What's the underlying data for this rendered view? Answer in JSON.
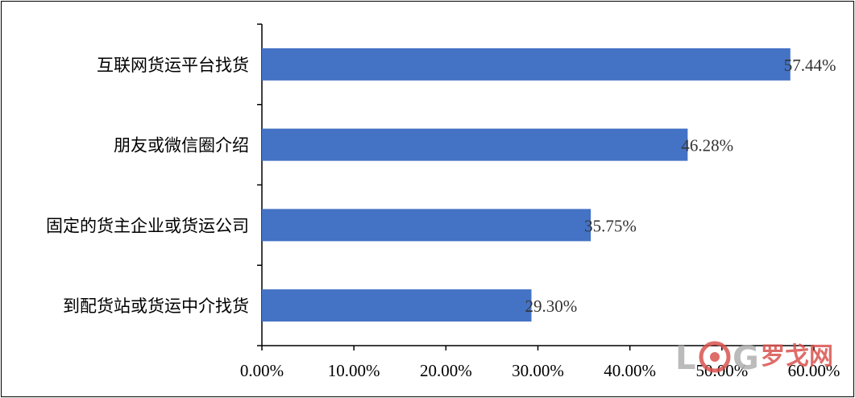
{
  "chart_data": {
    "type": "bar",
    "orientation": "horizontal",
    "categories": [
      "互联网货运平台找货",
      "朋友或微信圈介绍",
      "固定的货主企业或货运公司",
      "到配货站或货运中介找货"
    ],
    "values": [
      57.44,
      46.28,
      35.75,
      29.3
    ],
    "data_labels": [
      "57.44%",
      "46.28%",
      "35.75%",
      "29.30%"
    ],
    "xlim": [
      0,
      60
    ],
    "xticks": [
      0,
      10,
      20,
      30,
      40,
      50,
      60
    ],
    "xtick_labels": [
      "0.00%",
      "10.00%",
      "20.00%",
      "30.00%",
      "40.00%",
      "50.00%",
      "60.00%"
    ],
    "title": "",
    "xlabel": "",
    "ylabel": "",
    "grid": false,
    "bar_color": "#4472C4"
  },
  "watermark": {
    "text_latin": "LOG",
    "text_cn": "罗戈网",
    "color": "#d9534f",
    "gray": "#aaaaaa"
  }
}
